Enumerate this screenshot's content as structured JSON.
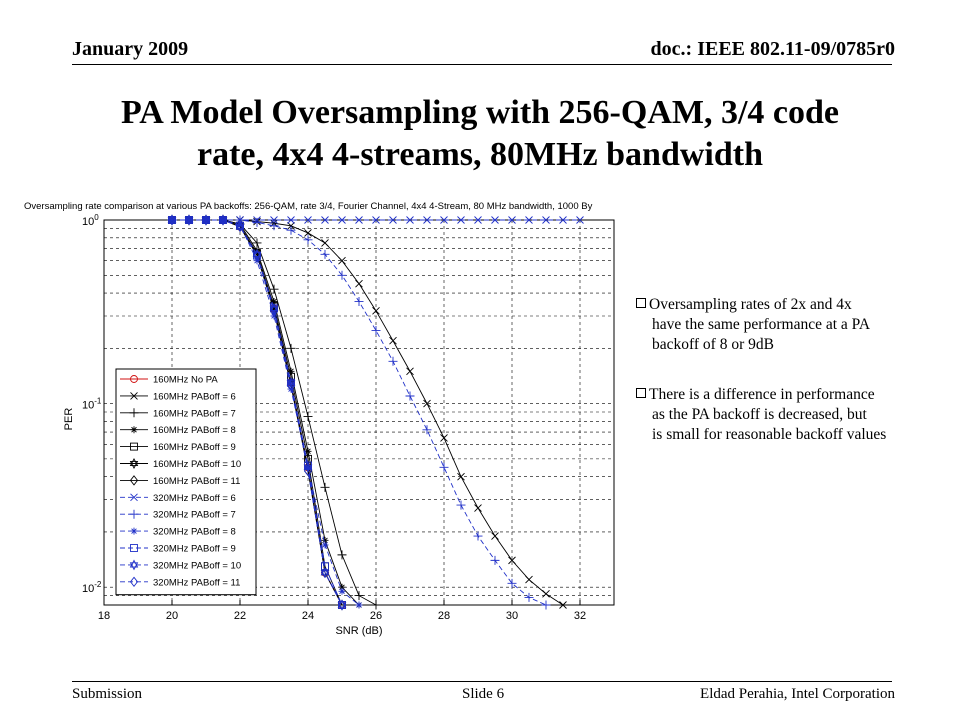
{
  "header": {
    "date": "January 2009",
    "doc": "doc.: IEEE 802.11-09/0785r0"
  },
  "slide_title": [
    "PA Model Oversampling with 256-QAM, 3/4 code",
    "rate, 4x4 4-streams, 80MHz bandwidth"
  ],
  "bullets": [
    [
      "Oversampling rates of 2x and 4x",
      "have the same performance at a PA",
      "backoff of 8 or 9dB"
    ],
    [
      "There is a difference in performance",
      "as the PA backoff is decreased, but",
      "is small for reasonable backoff values"
    ]
  ],
  "footer": {
    "left": "Submission",
    "center": "Slide 6",
    "right": "Eldad Perahia, Intel Corporation"
  },
  "chart_data": {
    "type": "line",
    "title": "Oversampling rate comparison at various PA backoffs: 256-QAM, rate 3/4, Fourier Channel, 4x4 4-Stream, 80 MHz bandwidth, 1000 By",
    "xlabel": "SNR (dB)",
    "ylabel": "PER",
    "xlim": [
      18,
      33
    ],
    "ylim": [
      0.008,
      1
    ],
    "yscale": "log",
    "xticks": [
      "18",
      "20",
      "22",
      "24",
      "26",
      "28",
      "30",
      "32"
    ],
    "yticks": [
      {
        "value": 1,
        "base": "10",
        "exp": "0"
      },
      {
        "value": 0.1,
        "base": "10",
        "exp": "-1"
      },
      {
        "value": 0.01,
        "base": "10",
        "exp": "-2"
      }
    ],
    "grid": true,
    "legend_position": "lower-left",
    "series": [
      {
        "name": "160MHz No PA",
        "color": "#d01010",
        "dash": "solid",
        "marker": "circle",
        "x": [
          20,
          20.5,
          21,
          21.5,
          22,
          22.5,
          23,
          23.5,
          24,
          24.5,
          25
        ],
        "y": [
          1,
          1,
          1,
          1,
          0.92,
          0.65,
          0.33,
          0.13,
          0.045,
          0.012,
          0.0072
        ]
      },
      {
        "name": "160MHz PABoff = 6",
        "color": "#000000",
        "dash": "solid",
        "marker": "x",
        "x": [
          20,
          20.5,
          21,
          21.5,
          22,
          22.5,
          23,
          23.5,
          24,
          24.5,
          25,
          25.5,
          26,
          26.5,
          27,
          27.5,
          28,
          28.5,
          29,
          29.5,
          30,
          30.5,
          31,
          31.5
        ],
        "y": [
          1,
          1,
          1,
          1,
          1,
          0.98,
          0.96,
          0.93,
          0.85,
          0.75,
          0.6,
          0.45,
          0.32,
          0.22,
          0.15,
          0.1,
          0.065,
          0.04,
          0.027,
          0.019,
          0.014,
          0.011,
          0.0092,
          0.0078
        ]
      },
      {
        "name": "160MHz PABoff = 7",
        "color": "#000000",
        "dash": "solid",
        "marker": "plus",
        "x": [
          20,
          20.5,
          21,
          21.5,
          22,
          22.5,
          23,
          23.5,
          24,
          24.5,
          25,
          25.5,
          26
        ],
        "y": [
          1,
          1,
          1,
          1,
          0.95,
          0.75,
          0.42,
          0.2,
          0.085,
          0.035,
          0.015,
          0.009,
          0.007
        ]
      },
      {
        "name": "160MHz PABoff = 8",
        "color": "#000000",
        "dash": "solid",
        "marker": "star",
        "x": [
          20,
          20.5,
          21,
          21.5,
          22,
          22.5,
          23,
          23.5,
          24,
          24.5,
          25,
          25.5
        ],
        "y": [
          1,
          1,
          1,
          1,
          0.95,
          0.68,
          0.36,
          0.15,
          0.055,
          0.018,
          0.01,
          0.0075
        ]
      },
      {
        "name": "160MHz PABoff = 9",
        "color": "#000000",
        "dash": "solid",
        "marker": "square",
        "x": [
          20,
          20.5,
          21,
          21.5,
          22,
          22.5,
          23,
          23.5,
          24,
          24.5,
          25
        ],
        "y": [
          1,
          1,
          1,
          1,
          0.93,
          0.66,
          0.34,
          0.14,
          0.05,
          0.013,
          0.008
        ]
      },
      {
        "name": "160MHz PABoff = 10",
        "color": "#000000",
        "dash": "solid",
        "marker": "hexagram",
        "x": [
          20,
          20.5,
          21,
          21.5,
          22,
          22.5,
          23,
          23.5,
          24,
          24.5,
          25
        ],
        "y": [
          1,
          1,
          1,
          1,
          0.92,
          0.65,
          0.33,
          0.13,
          0.045,
          0.012,
          0.0075
        ]
      },
      {
        "name": "160MHz PABoff = 11",
        "color": "#000000",
        "dash": "solid",
        "marker": "diamond",
        "x": [
          20,
          20.5,
          21,
          21.5,
          22,
          22.5,
          23,
          23.5,
          24,
          24.5,
          25
        ],
        "y": [
          1,
          1,
          1,
          1,
          0.92,
          0.64,
          0.32,
          0.125,
          0.043,
          0.012,
          0.0074
        ]
      },
      {
        "name": "320MHz PABoff = 6",
        "color": "#2030c8",
        "dash": "dashed",
        "marker": "x",
        "x": [
          20,
          20.5,
          21,
          21.5,
          22,
          22.5,
          23,
          23.5,
          24,
          24.5,
          25,
          25.5,
          26,
          26.5,
          27,
          27.5,
          28,
          28.5,
          29,
          29.5,
          30,
          30.5,
          31,
          31.5,
          32
        ],
        "y": [
          1,
          1,
          1,
          1,
          1,
          1,
          1,
          1,
          1,
          1,
          1,
          1,
          1,
          1,
          1,
          1,
          1,
          1,
          1,
          1,
          1,
          1,
          1,
          1,
          1
        ]
      },
      {
        "name": "320MHz PABoff = 7",
        "color": "#2030c8",
        "dash": "dashed",
        "marker": "plus",
        "x": [
          20,
          20.5,
          21,
          21.5,
          22,
          22.5,
          23,
          23.5,
          24,
          24.5,
          25,
          25.5,
          26,
          26.5,
          27,
          27.5,
          28,
          28.5,
          29,
          29.5,
          30,
          30.5,
          31
        ],
        "y": [
          1,
          1,
          1,
          1,
          1,
          0.97,
          0.93,
          0.88,
          0.78,
          0.65,
          0.5,
          0.36,
          0.25,
          0.17,
          0.11,
          0.072,
          0.045,
          0.028,
          0.019,
          0.014,
          0.0105,
          0.0088,
          0.0074
        ]
      },
      {
        "name": "320MHz PABoff = 8",
        "color": "#2030c8",
        "dash": "dashed",
        "marker": "star",
        "x": [
          20,
          20.5,
          21,
          21.5,
          22,
          22.5,
          23,
          23.5,
          24,
          24.5,
          25,
          25.5
        ],
        "y": [
          1,
          1,
          1,
          1,
          0.94,
          0.6,
          0.3,
          0.12,
          0.045,
          0.017,
          0.0095,
          0.0072
        ]
      },
      {
        "name": "320MHz PABoff = 9",
        "color": "#2030c8",
        "dash": "dashed",
        "marker": "square",
        "x": [
          20,
          20.5,
          21,
          21.5,
          22,
          22.5,
          23,
          23.5,
          24,
          24.5,
          25
        ],
        "y": [
          1,
          1,
          1,
          1,
          0.93,
          0.64,
          0.33,
          0.13,
          0.046,
          0.013,
          0.008
        ]
      },
      {
        "name": "320MHz PABoff = 10",
        "color": "#2030c8",
        "dash": "dashed",
        "marker": "hexagram",
        "x": [
          20,
          20.5,
          21,
          21.5,
          22,
          22.5,
          23,
          23.5,
          24,
          24.5,
          25
        ],
        "y": [
          1,
          1,
          1,
          1,
          0.92,
          0.65,
          0.33,
          0.13,
          0.045,
          0.012,
          0.0075
        ]
      },
      {
        "name": "320MHz PABoff = 11",
        "color": "#2030c8",
        "dash": "dashed",
        "marker": "diamond",
        "x": [
          20,
          20.5,
          21,
          21.5,
          22,
          22.5,
          23,
          23.5,
          24,
          24.5,
          25
        ],
        "y": [
          1,
          1,
          1,
          1,
          0.92,
          0.64,
          0.32,
          0.125,
          0.043,
          0.012,
          0.0074
        ]
      }
    ]
  }
}
